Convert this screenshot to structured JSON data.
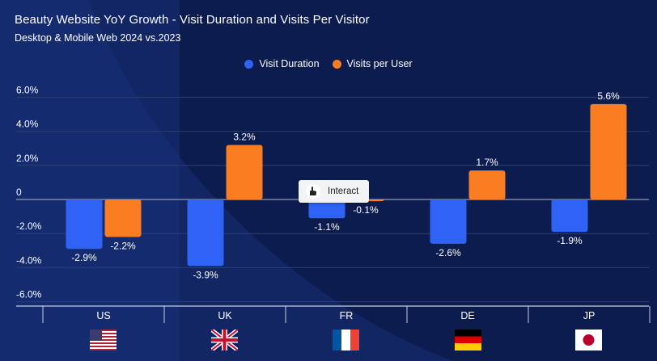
{
  "title": "Beauty Website YoY Growth - Visit Duration and Visits Per Visitor",
  "subtitle": "Desktop & Mobile Web 2024 vs.2023",
  "tooltip": {
    "label": "Interact",
    "icon": "hand-pointer-icon"
  },
  "colors": {
    "background": "#0c1c4e",
    "visit_duration": "#2e63f6",
    "visits_per_user": "#fb7d22",
    "grid": "#2d3e70",
    "zero_line": "#8e98b6",
    "text": "#ffffff"
  },
  "chart_data": {
    "type": "bar",
    "categories": [
      "US",
      "UK",
      "FR",
      "DE",
      "JP"
    ],
    "series": [
      {
        "name": "Visit Duration",
        "values": [
          -2.9,
          -3.9,
          -1.1,
          -2.6,
          -1.9
        ],
        "labels": [
          "-2.9%",
          "-3.9%",
          "-1.1%",
          "-2.6%",
          "-1.9%"
        ]
      },
      {
        "name": "Visits per User",
        "values": [
          -2.2,
          3.2,
          -0.1,
          1.7,
          5.6
        ],
        "labels": [
          "-2.2%",
          "3.2%",
          "-0.1%",
          "1.7%",
          "5.6%"
        ]
      }
    ],
    "yticks": [
      6,
      4,
      2,
      0,
      -2,
      -4,
      -6
    ],
    "ytick_labels": [
      "6.0%",
      "4.0%",
      "2.0%",
      "0",
      "-2.0%",
      "-4.0%",
      "-6.0%"
    ],
    "ylim": [
      -6.2,
      6.2
    ],
    "grid": true,
    "legend_position": "top-center",
    "flags": [
      "us-flag-icon",
      "uk-flag-icon",
      "france-flag-icon",
      "germany-flag-icon",
      "japan-flag-icon"
    ]
  }
}
